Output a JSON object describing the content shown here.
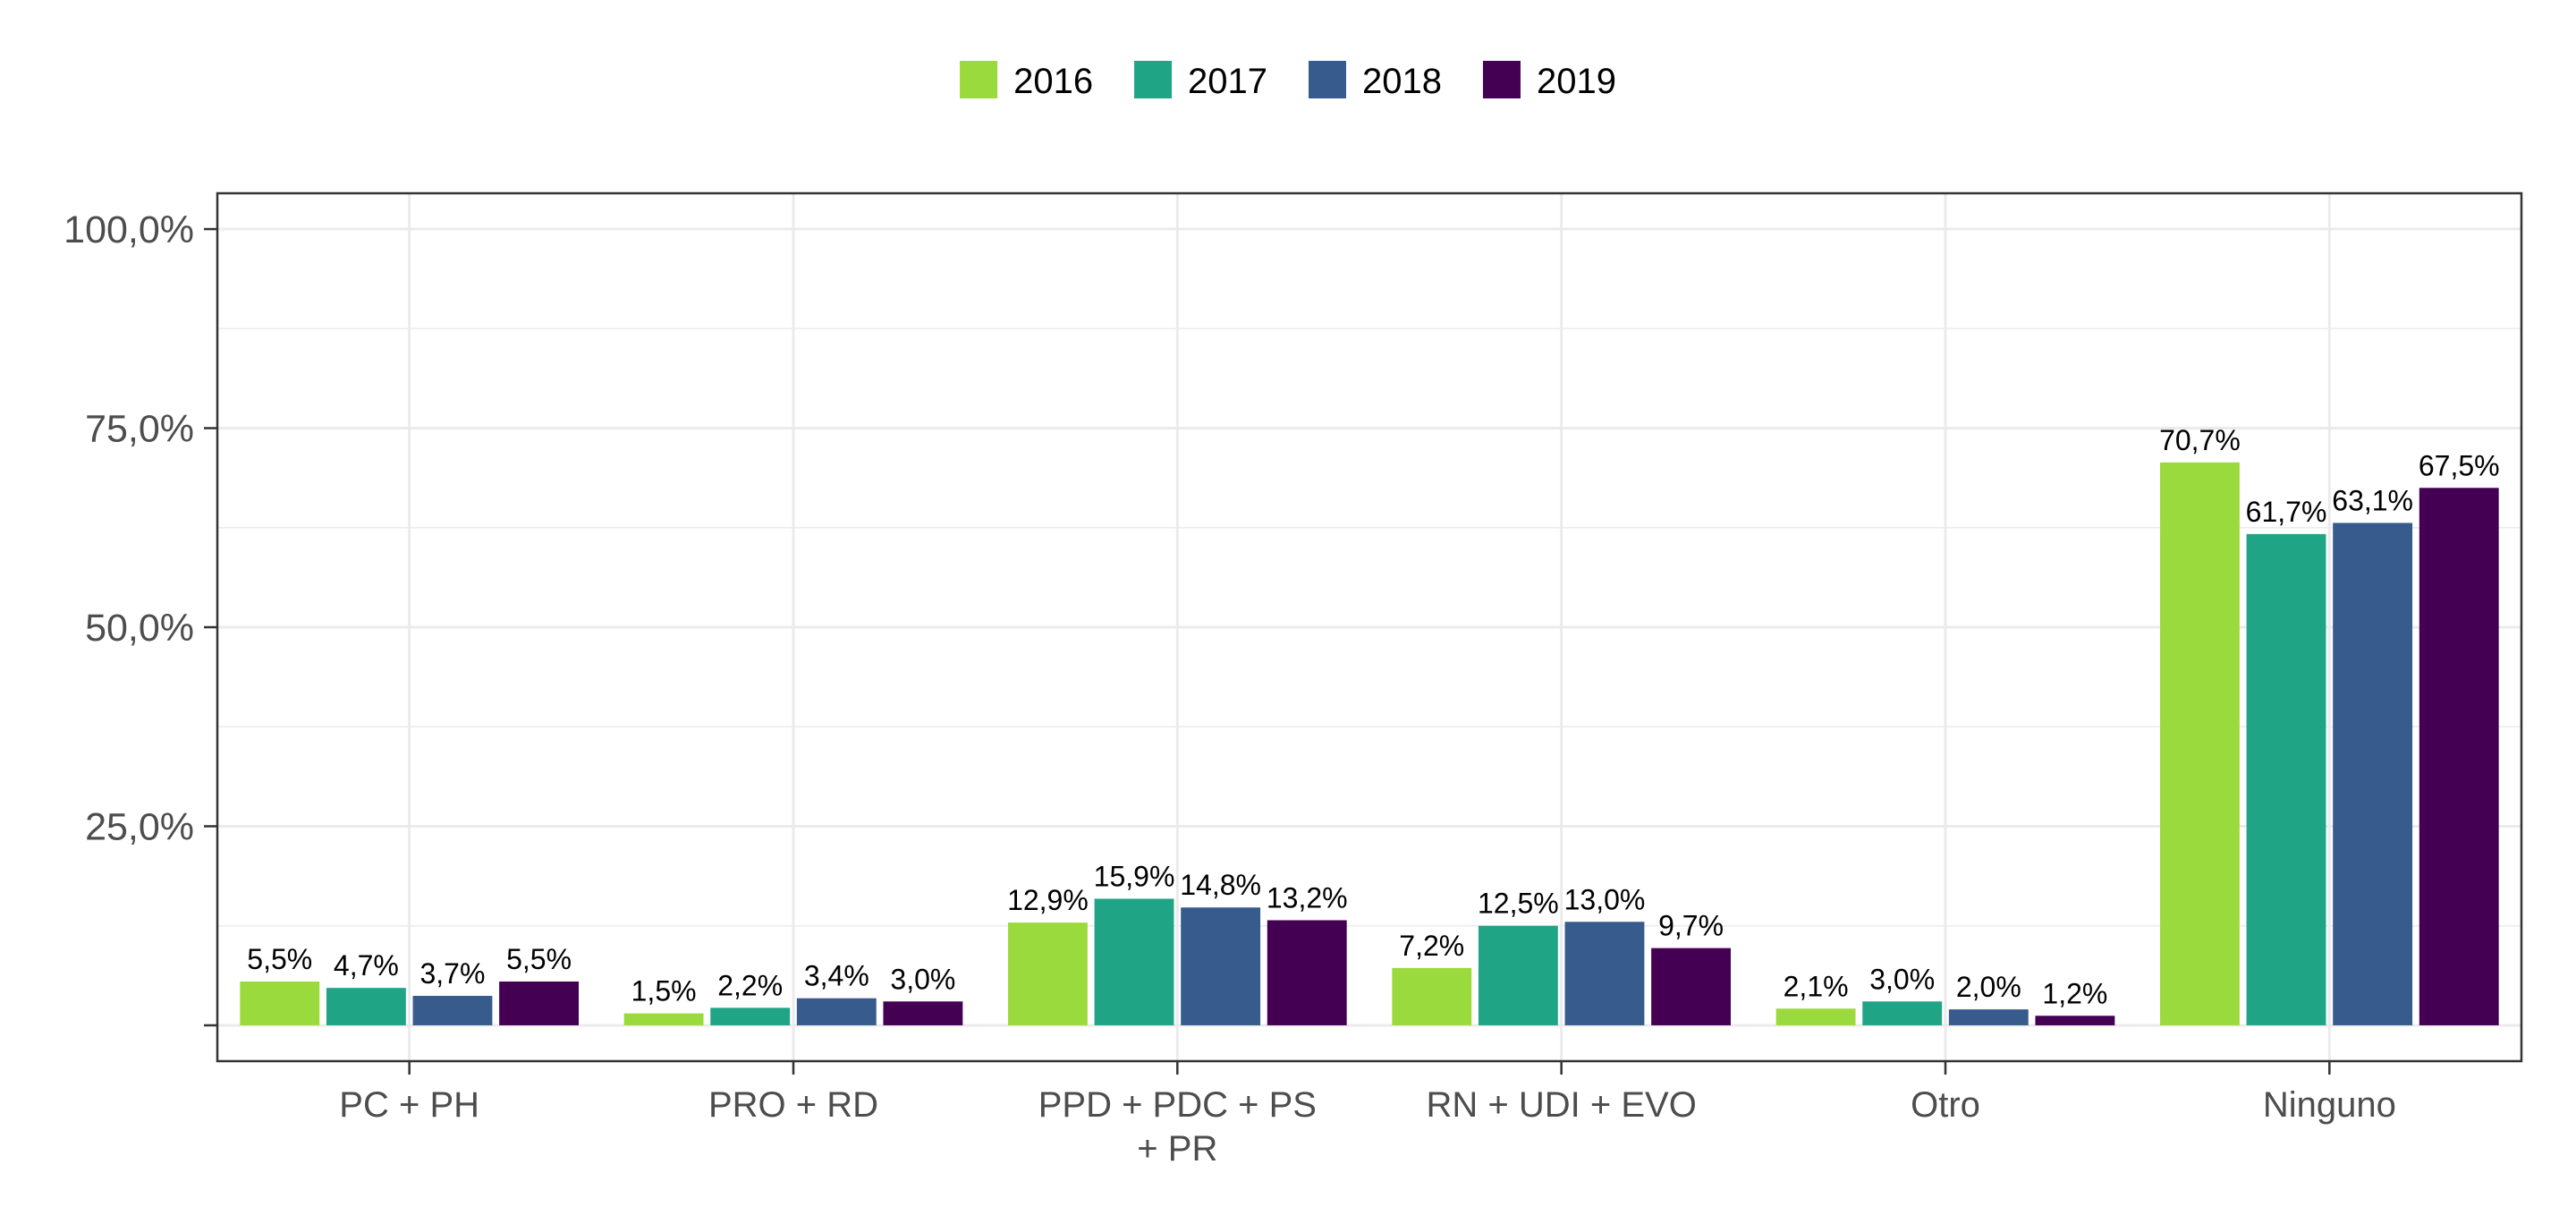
{
  "chart_data": {
    "type": "bar",
    "title": "",
    "xlabel": "",
    "ylabel": "",
    "categories": [
      [
        "PC + PH"
      ],
      [
        "PRO + RD"
      ],
      [
        "PPD + PDC + PS",
        "+ PR"
      ],
      [
        "RN + UDI + EVO"
      ],
      [
        "Otro"
      ],
      [
        "Ninguno"
      ]
    ],
    "series": [
      {
        "name": "2016",
        "color": "#9BDA3C",
        "values": [
          5.5,
          1.5,
          12.9,
          7.2,
          2.1,
          70.7
        ],
        "labels": [
          "5,5%",
          "1,5%",
          "12,9%",
          "7,2%",
          "2,1%",
          "70,7%"
        ]
      },
      {
        "name": "2017",
        "color": "#20A486",
        "values": [
          4.7,
          2.2,
          15.9,
          12.5,
          3.0,
          61.7
        ],
        "labels": [
          "4,7%",
          "2,2%",
          "15,9%",
          "12,5%",
          "3,0%",
          "61,7%"
        ]
      },
      {
        "name": "2018",
        "color": "#375B8D",
        "values": [
          3.7,
          3.4,
          14.8,
          13.0,
          2.0,
          63.1
        ],
        "labels": [
          "3,7%",
          "3,4%",
          "14,8%",
          "13,0%",
          "2,0%",
          "63,1%"
        ]
      },
      {
        "name": "2019",
        "color": "#440154",
        "values": [
          5.5,
          3.0,
          13.2,
          9.7,
          1.2,
          67.5
        ],
        "labels": [
          "5,5%",
          "3,0%",
          "13,2%",
          "9,7%",
          "1,2%",
          "67,5%"
        ]
      }
    ],
    "ylim": [
      -4.5,
      104.5
    ],
    "yticks": [
      {
        "value": 0,
        "label": ""
      },
      {
        "value": 25,
        "label": "25,0%"
      },
      {
        "value": 50,
        "label": "50,0%"
      },
      {
        "value": 75,
        "label": "75,0%"
      },
      {
        "value": 100,
        "label": "100,0%"
      }
    ],
    "grid": true,
    "legend_position": "top"
  }
}
